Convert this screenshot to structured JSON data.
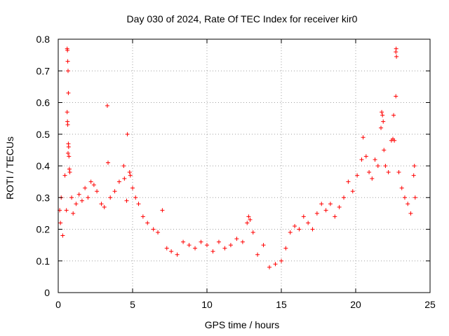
{
  "chart_data": {
    "type": "scatter",
    "title": "Day 030 of 2024, Rate Of TEC Index for receiver kir0",
    "xlabel": "GPS time / hours",
    "ylabel": "ROTI / TECUs",
    "xlim": [
      0,
      25
    ],
    "ylim": [
      0,
      0.8
    ],
    "x_ticks": [
      "0",
      "5",
      "10",
      "15",
      "20",
      "25"
    ],
    "y_ticks": [
      "0",
      "0.1",
      "0.2",
      "0.3",
      "0.4",
      "0.5",
      "0.6",
      "0.7",
      "0.8"
    ],
    "grid": true,
    "marker": "+",
    "series_color": "#ff0000",
    "series": [
      {
        "name": "ROTI",
        "points": [
          [
            0.1,
            0.26
          ],
          [
            0.15,
            0.22
          ],
          [
            0.2,
            0.3
          ],
          [
            0.3,
            0.18
          ],
          [
            0.45,
            0.37
          ],
          [
            0.55,
            0.26
          ],
          [
            0.6,
            0.77
          ],
          [
            0.62,
            0.765
          ],
          [
            0.64,
            0.73
          ],
          [
            0.66,
            0.7
          ],
          [
            0.68,
            0.63
          ],
          [
            0.6,
            0.57
          ],
          [
            0.62,
            0.54
          ],
          [
            0.64,
            0.53
          ],
          [
            0.68,
            0.47
          ],
          [
            0.7,
            0.46
          ],
          [
            0.66,
            0.44
          ],
          [
            0.72,
            0.43
          ],
          [
            0.75,
            0.39
          ],
          [
            0.78,
            0.38
          ],
          [
            0.9,
            0.3
          ],
          [
            1.0,
            0.25
          ],
          [
            1.2,
            0.28
          ],
          [
            1.4,
            0.31
          ],
          [
            1.6,
            0.29
          ],
          [
            1.8,
            0.33
          ],
          [
            2.0,
            0.3
          ],
          [
            2.2,
            0.35
          ],
          [
            2.4,
            0.34
          ],
          [
            2.6,
            0.32
          ],
          [
            2.9,
            0.28
          ],
          [
            3.1,
            0.27
          ],
          [
            3.3,
            0.59
          ],
          [
            3.35,
            0.41
          ],
          [
            3.5,
            0.3
          ],
          [
            3.8,
            0.32
          ],
          [
            4.1,
            0.35
          ],
          [
            4.4,
            0.4
          ],
          [
            4.45,
            0.36
          ],
          [
            4.6,
            0.29
          ],
          [
            4.65,
            0.5
          ],
          [
            4.8,
            0.38
          ],
          [
            4.85,
            0.37
          ],
          [
            5.0,
            0.33
          ],
          [
            5.2,
            0.3
          ],
          [
            5.4,
            0.28
          ],
          [
            5.7,
            0.24
          ],
          [
            6.0,
            0.22
          ],
          [
            6.4,
            0.2
          ],
          [
            6.7,
            0.19
          ],
          [
            7.0,
            0.26
          ],
          [
            7.3,
            0.14
          ],
          [
            7.6,
            0.13
          ],
          [
            8.0,
            0.12
          ],
          [
            8.4,
            0.16
          ],
          [
            8.8,
            0.15
          ],
          [
            9.2,
            0.14
          ],
          [
            9.6,
            0.16
          ],
          [
            10.0,
            0.15
          ],
          [
            10.4,
            0.13
          ],
          [
            10.8,
            0.16
          ],
          [
            11.2,
            0.14
          ],
          [
            11.6,
            0.15
          ],
          [
            12.0,
            0.17
          ],
          [
            12.4,
            0.16
          ],
          [
            12.7,
            0.22
          ],
          [
            12.8,
            0.24
          ],
          [
            12.9,
            0.23
          ],
          [
            13.1,
            0.19
          ],
          [
            13.4,
            0.12
          ],
          [
            13.8,
            0.15
          ],
          [
            14.2,
            0.08
          ],
          [
            14.6,
            0.09
          ],
          [
            15.0,
            0.1
          ],
          [
            15.3,
            0.14
          ],
          [
            15.6,
            0.19
          ],
          [
            15.9,
            0.21
          ],
          [
            16.2,
            0.2
          ],
          [
            16.5,
            0.24
          ],
          [
            16.8,
            0.22
          ],
          [
            17.1,
            0.2
          ],
          [
            17.4,
            0.25
          ],
          [
            17.7,
            0.28
          ],
          [
            18.0,
            0.26
          ],
          [
            18.3,
            0.28
          ],
          [
            18.6,
            0.24
          ],
          [
            18.9,
            0.27
          ],
          [
            19.2,
            0.3
          ],
          [
            19.5,
            0.35
          ],
          [
            19.8,
            0.32
          ],
          [
            20.1,
            0.37
          ],
          [
            20.4,
            0.42
          ],
          [
            20.5,
            0.49
          ],
          [
            20.7,
            0.43
          ],
          [
            20.9,
            0.38
          ],
          [
            21.1,
            0.36
          ],
          [
            21.3,
            0.42
          ],
          [
            21.5,
            0.4
          ],
          [
            21.7,
            0.52
          ],
          [
            21.75,
            0.57
          ],
          [
            21.8,
            0.56
          ],
          [
            21.85,
            0.54
          ],
          [
            21.9,
            0.45
          ],
          [
            22.0,
            0.4
          ],
          [
            22.2,
            0.38
          ],
          [
            22.4,
            0.48
          ],
          [
            22.5,
            0.485
          ],
          [
            22.55,
            0.56
          ],
          [
            22.6,
            0.48
          ],
          [
            22.7,
            0.76
          ],
          [
            22.72,
            0.77
          ],
          [
            22.74,
            0.745
          ],
          [
            22.7,
            0.62
          ],
          [
            22.9,
            0.38
          ],
          [
            23.1,
            0.33
          ],
          [
            23.3,
            0.3
          ],
          [
            23.5,
            0.28
          ],
          [
            23.7,
            0.25
          ],
          [
            23.9,
            0.37
          ],
          [
            23.95,
            0.4
          ],
          [
            24.0,
            0.3
          ]
        ]
      }
    ]
  }
}
